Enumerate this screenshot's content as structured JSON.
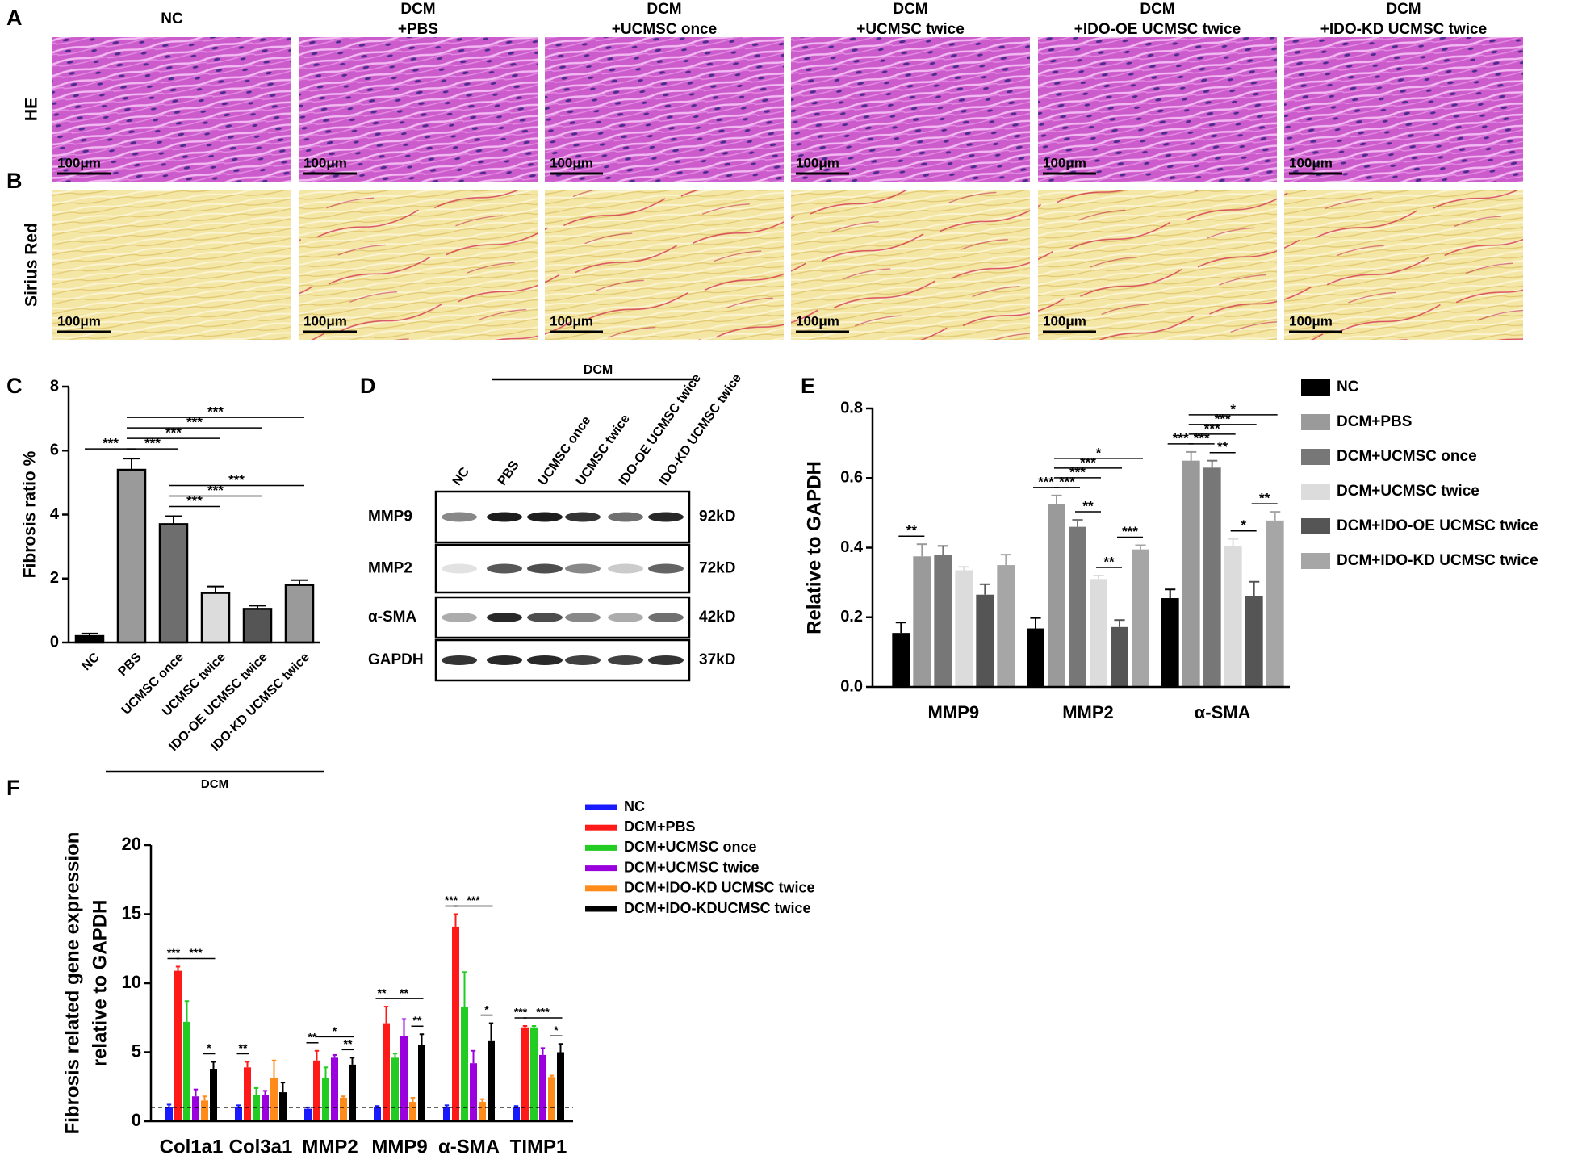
{
  "panels": {
    "letters": [
      "A",
      "B",
      "C",
      "D",
      "E",
      "F"
    ],
    "columns": [
      [
        "NC"
      ],
      [
        "DCM",
        "+PBS"
      ],
      [
        "DCM",
        "+UCMSC once"
      ],
      [
        "DCM",
        "+UCMSC twice"
      ],
      [
        "DCM",
        "+IDO-OE UCMSC twice"
      ],
      [
        "DCM",
        "+IDO-KD UCMSC twice"
      ]
    ],
    "rows": [
      "HE",
      "Sirius Red"
    ],
    "scale_bar": "100μm"
  },
  "blot": {
    "group": "DCM",
    "lanes": [
      "NC",
      "PBS",
      "UCMSC once",
      "UCMSC twice",
      "IDO-OE UCMSC twice",
      "IDO-KD UCMSC twice"
    ],
    "proteins": [
      {
        "name": "MMP9",
        "size": "92kD"
      },
      {
        "name": "MMP2",
        "size": "72kD"
      },
      {
        "name": "α-SMA",
        "size": "42kD"
      },
      {
        "name": "GAPDH",
        "size": "37kD"
      }
    ]
  },
  "chart_data": [
    {
      "type": "bar",
      "ylabel": "Fibrosis ratio %",
      "categories": [
        "NC",
        "PBS",
        "UCMSC once",
        "UCMSC twice",
        "IDO-OE UCMSC twice",
        "IDO-KD UCMSC twice"
      ],
      "values": [
        0.2,
        5.4,
        3.7,
        1.55,
        1.05,
        1.8
      ],
      "errors": [
        0.08,
        0.35,
        0.25,
        0.2,
        0.1,
        0.15
      ],
      "colors": [
        "#000000",
        "#9a9a9a",
        "#6e6e6e",
        "#dcdcdc",
        "#555555",
        "#9a9a9a"
      ],
      "ylim": [
        0,
        8
      ],
      "yticks": [
        0,
        2,
        4,
        6,
        8
      ],
      "group_label": "DCM",
      "comparisons": [
        {
          "from": 0,
          "to": 1,
          "label": "***"
        },
        {
          "from": 1,
          "to": 2,
          "label": "***"
        },
        {
          "from": 2,
          "to": 3,
          "label": "***"
        },
        {
          "from": 2,
          "to": 4,
          "label": "***"
        },
        {
          "from": 2,
          "to": 5,
          "label": "***"
        },
        {
          "from": 1,
          "to": 3,
          "label": "***"
        },
        {
          "from": 1,
          "to": 4,
          "label": "***"
        },
        {
          "from": 1,
          "to": 5,
          "label": "***"
        }
      ]
    },
    {
      "type": "grouped_bar",
      "ylabel": "Relative to GAPDH",
      "categories": [
        "MMP9",
        "MMP2",
        "α-SMA"
      ],
      "series": [
        {
          "name": "NC",
          "color": "#000000",
          "values": [
            0.155,
            0.168,
            0.255
          ],
          "errors": [
            0.03,
            0.03,
            0.025
          ]
        },
        {
          "name": "DCM+PBS",
          "color": "#9a9a9a",
          "values": [
            0.375,
            0.525,
            0.65
          ],
          "errors": [
            0.035,
            0.025,
            0.025
          ]
        },
        {
          "name": "DCM+UCMSC once",
          "color": "#777777",
          "values": [
            0.38,
            0.46,
            0.63
          ],
          "errors": [
            0.025,
            0.02,
            0.02
          ]
        },
        {
          "name": "DCM+UCMSC twice",
          "color": "#dcdcdc",
          "values": [
            0.335,
            0.31,
            0.405
          ],
          "errors": [
            0.01,
            0.01,
            0.02
          ]
        },
        {
          "name": "DCM+IDO-OE UCMSC twice",
          "color": "#555555",
          "values": [
            0.265,
            0.172,
            0.262
          ],
          "errors": [
            0.03,
            0.02,
            0.04
          ]
        },
        {
          "name": "DCM+IDO-KD UCMSC twice",
          "color": "#a6a6a6",
          "values": [
            0.35,
            0.395,
            0.478
          ],
          "errors": [
            0.03,
            0.012,
            0.025
          ]
        }
      ],
      "ylim": [
        0,
        0.8
      ],
      "yticks": [
        {
          "value": 0,
          "label": "0.0"
        },
        0.2,
        0.4,
        0.6,
        0.8
      ],
      "legend": "right",
      "comparisons": [
        {
          "category": 0,
          "from": 0,
          "to": 1,
          "label": "**"
        },
        {
          "category": 1,
          "from": 0,
          "to": 1,
          "label": "***"
        },
        {
          "category": 1,
          "from": 1,
          "to": 2,
          "label": "***"
        },
        {
          "category": 1,
          "from": 2,
          "to": 3,
          "label": "**"
        },
        {
          "category": 1,
          "from": 3,
          "to": 4,
          "label": "**"
        },
        {
          "category": 1,
          "from": 4,
          "to": 5,
          "label": "***"
        },
        {
          "category": 1,
          "from": 1,
          "to": 3,
          "label": "***"
        },
        {
          "category": 1,
          "from": 1,
          "to": 4,
          "label": "***"
        },
        {
          "category": 1,
          "from": 1,
          "to": 5,
          "label": "*"
        },
        {
          "category": 2,
          "from": 0,
          "to": 1,
          "label": "***"
        },
        {
          "category": 2,
          "from": 1,
          "to": 2,
          "label": "***"
        },
        {
          "category": 2,
          "from": 2,
          "to": 3,
          "label": "**"
        },
        {
          "category": 2,
          "from": 3,
          "to": 4,
          "label": "*"
        },
        {
          "category": 2,
          "from": 4,
          "to": 5,
          "label": "**"
        },
        {
          "category": 2,
          "from": 1,
          "to": 3,
          "label": "***"
        },
        {
          "category": 2,
          "from": 1,
          "to": 4,
          "label": "***"
        },
        {
          "category": 2,
          "from": 1,
          "to": 5,
          "label": "*"
        }
      ]
    },
    {
      "type": "grouped_bar",
      "ylabel": [
        "Fibrosis related gene expression",
        "relative to GAPDH"
      ],
      "categories": [
        "Col1a1",
        "Col3a1",
        "MMP2",
        "MMP9",
        "α-SMA",
        "TIMP1"
      ],
      "series": [
        {
          "name": "NC",
          "color": "#1a1aff",
          "values": [
            1,
            1,
            0.9,
            1,
            1,
            1
          ],
          "errors": [
            0.2,
            0.15,
            0.1,
            0.1,
            0.15,
            0.1
          ]
        },
        {
          "name": "DCM+PBS",
          "color": "#ff1a1a",
          "values": [
            10.9,
            3.9,
            4.4,
            7.1,
            14.1,
            6.8
          ],
          "errors": [
            0.3,
            0.4,
            0.7,
            1.2,
            0.9,
            0.1
          ]
        },
        {
          "name": "DCM+UCMSC once",
          "color": "#22cc22",
          "values": [
            7.2,
            1.9,
            3.1,
            4.6,
            8.3,
            6.8
          ],
          "errors": [
            1.5,
            0.5,
            0.8,
            0.3,
            2.5,
            0.1
          ]
        },
        {
          "name": "DCM+UCMSC twice",
          "color": "#9900dd",
          "values": [
            1.8,
            1.9,
            4.6,
            6.2,
            4.2,
            4.8
          ],
          "errors": [
            0.5,
            0.3,
            0.2,
            1.2,
            0.9,
            0.5
          ]
        },
        {
          "name": "DCM+IDO-KD UCMSC twice",
          "color": "#ff8c1a",
          "values": [
            1.5,
            3.1,
            1.7,
            1.4,
            1.4,
            3.2
          ],
          "errors": [
            0.3,
            1.3,
            0.1,
            0.3,
            0.2,
            0.1
          ]
        },
        {
          "name": "DCM+IDO-KDUCMSC twice",
          "color": "#000000",
          "values": [
            3.8,
            2.1,
            4.1,
            5.5,
            5.8,
            5.0
          ],
          "errors": [
            0.5,
            0.7,
            0.5,
            0.8,
            1.3,
            0.6
          ]
        }
      ],
      "ylim": [
        0,
        20
      ],
      "yticks": [
        0,
        5,
        10,
        15,
        20
      ],
      "reference_line": 1,
      "legend": "top",
      "comparisons": [
        {
          "category": 0,
          "from": 0,
          "to": 1,
          "label": "***"
        },
        {
          "category": 0,
          "from": 4,
          "to": 5,
          "label": "*"
        },
        {
          "category": 0,
          "from": 1,
          "to": 5,
          "label": "***"
        },
        {
          "category": 1,
          "from": 0,
          "to": 1,
          "label": "**"
        },
        {
          "category": 2,
          "from": 0,
          "to": 1,
          "label": "**"
        },
        {
          "category": 2,
          "from": 4,
          "to": 5,
          "label": "**"
        },
        {
          "category": 2,
          "from": 1,
          "to": 5,
          "label": "*"
        },
        {
          "category": 3,
          "from": 0,
          "to": 1,
          "label": "**"
        },
        {
          "category": 3,
          "from": 4,
          "to": 5,
          "label": "**"
        },
        {
          "category": 3,
          "from": 1,
          "to": 5,
          "label": "**"
        },
        {
          "category": 4,
          "from": 0,
          "to": 1,
          "label": "***"
        },
        {
          "category": 4,
          "from": 4,
          "to": 5,
          "label": "*"
        },
        {
          "category": 4,
          "from": 1,
          "to": 5,
          "label": "***"
        },
        {
          "category": 5,
          "from": 0,
          "to": 1,
          "label": "***"
        },
        {
          "category": 5,
          "from": 4,
          "to": 5,
          "label": "*"
        },
        {
          "category": 5,
          "from": 1,
          "to": 5,
          "label": "***"
        }
      ]
    }
  ]
}
